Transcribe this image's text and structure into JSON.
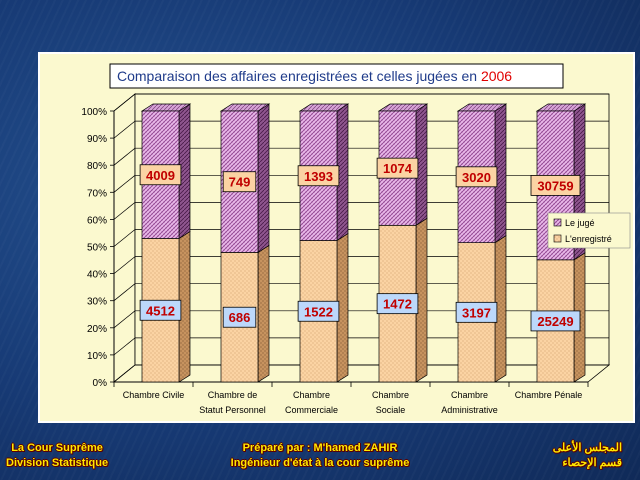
{
  "chart_data": {
    "type": "bar",
    "stacked": "percent",
    "title": "Comparaison des affaires enregistrées et celles jugées en ",
    "title_year": "2006",
    "categories": [
      [
        "Chambre Civile"
      ],
      [
        "Chambre de",
        "Statut Personnel"
      ],
      [
        "Chambre",
        "Commerciale"
      ],
      [
        "Chambre",
        "Sociale"
      ],
      [
        "Chambre",
        "Administrative"
      ],
      [
        "Chambre Pénale"
      ]
    ],
    "series": [
      {
        "name": "L'enregistré",
        "values": [
          4512,
          686,
          1522,
          1472,
          3197,
          25249
        ]
      },
      {
        "name": "Le jugé",
        "values": [
          4009,
          749,
          1393,
          1074,
          3020,
          30759
        ]
      }
    ],
    "yticks": [
      "0%",
      "10%",
      "20%",
      "30%",
      "40%",
      "50%",
      "60%",
      "70%",
      "80%",
      "90%",
      "100%"
    ],
    "ylim": [
      0,
      100
    ],
    "legend_position": "right",
    "grid": true,
    "colors": {
      "enregistre": "#fbd3a3",
      "juge": "#e9b9e9",
      "label_enregistre_bg": "#bcd8fb",
      "label_juge_bg": "#fbd3a3",
      "label_text": "#c00000",
      "title_text": "#1f3b8a",
      "title_year": "#e00000"
    }
  },
  "footer": {
    "left_line1": "La Cour Suprême",
    "left_line2": "Division Statistique",
    "mid_line1": "Préparé par : M'hamed ZAHIR",
    "mid_line2": "Ingénieur d'état à la cour suprême",
    "right_line1": "المجلس الأعلى",
    "right_line2": "قسم الإحصاء"
  }
}
